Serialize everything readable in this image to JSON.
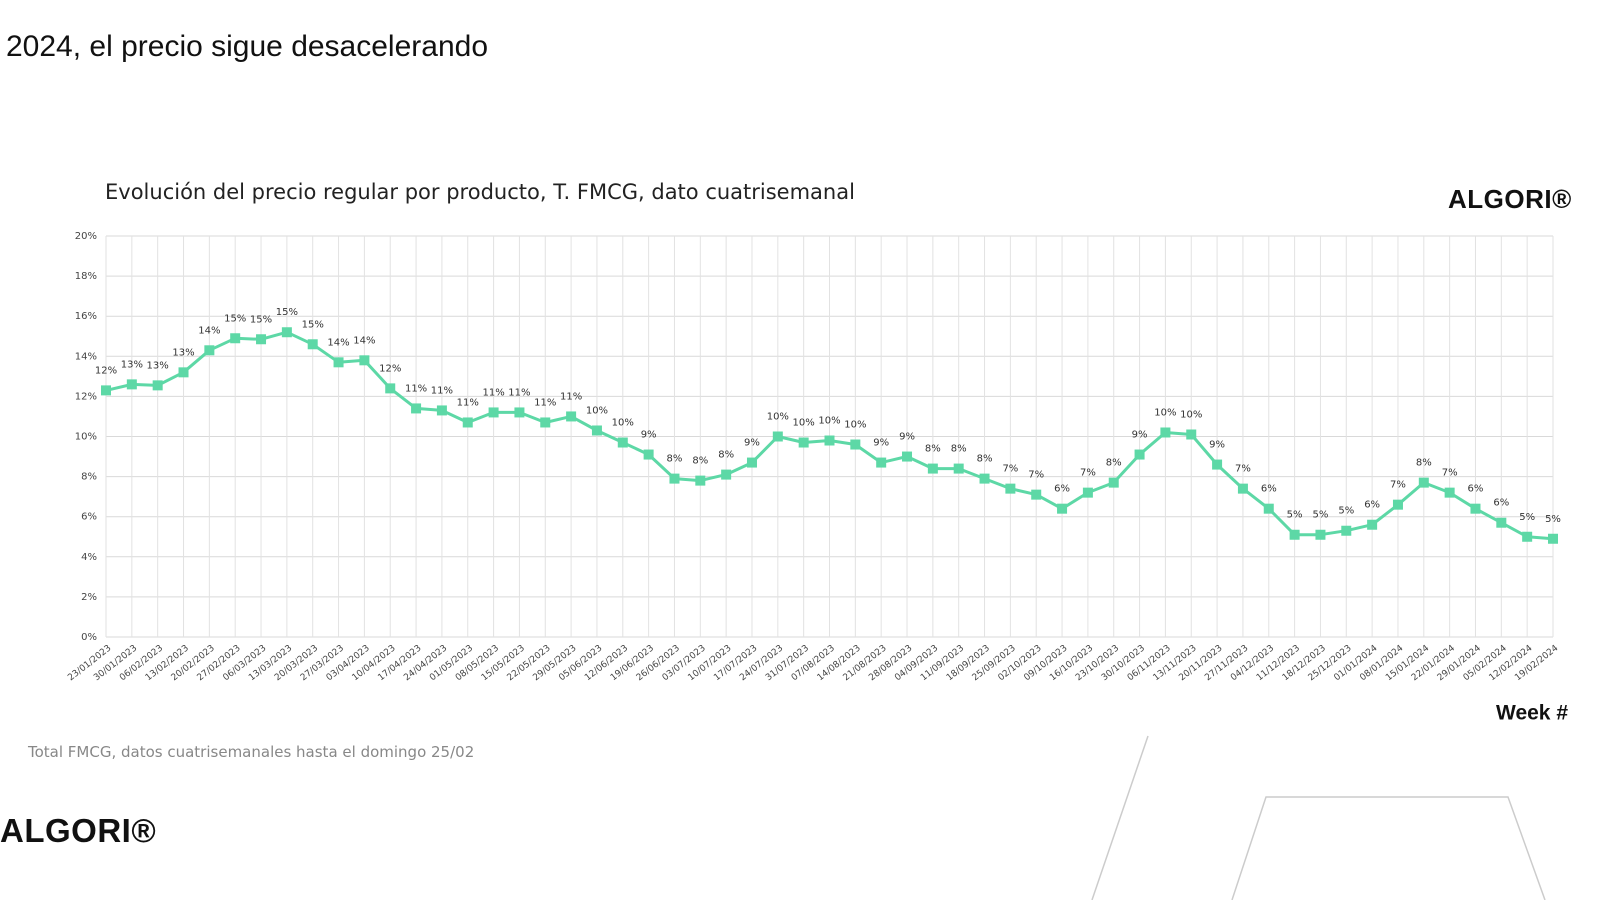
{
  "slide": {
    "title": "2024, el precio sigue desacelerando",
    "logo": "ALGORI®",
    "note": "Total FMCG, datos cuatrisemanales hasta el domingo 25/02"
  },
  "chart_data": {
    "type": "line",
    "title": "Evolución del precio regular por producto, T. FMCG, dato cuatrisemanal",
    "x_label": "Week #",
    "categories": [
      "23/01/2023",
      "30/01/2023",
      "06/02/2023",
      "13/02/2023",
      "20/02/2023",
      "27/02/2023",
      "06/03/2023",
      "13/03/2023",
      "20/03/2023",
      "27/03/2023",
      "03/04/2023",
      "10/04/2023",
      "17/04/2023",
      "24/04/2023",
      "01/05/2023",
      "08/05/2023",
      "15/05/2023",
      "22/05/2023",
      "29/05/2023",
      "05/06/2023",
      "12/06/2023",
      "19/06/2023",
      "26/06/2023",
      "03/07/2023",
      "10/07/2023",
      "17/07/2023",
      "24/07/2023",
      "31/07/2023",
      "07/08/2023",
      "14/08/2023",
      "21/08/2023",
      "28/08/2023",
      "04/09/2023",
      "11/09/2023",
      "18/09/2023",
      "25/09/2023",
      "02/10/2023",
      "09/10/2023",
      "16/10/2023",
      "23/10/2023",
      "30/10/2023",
      "06/11/2023",
      "13/11/2023",
      "20/11/2023",
      "27/11/2023",
      "04/12/2023",
      "11/12/2023",
      "18/12/2023",
      "25/12/2023",
      "01/01/2024",
      "08/01/2024",
      "15/01/2024",
      "22/01/2024",
      "29/01/2024",
      "05/02/2024",
      "12/02/2024",
      "19/02/2024"
    ],
    "values": [
      12.3,
      12.6,
      12.55,
      13.2,
      14.3,
      14.9,
      14.85,
      15.2,
      14.6,
      13.7,
      13.8,
      12.4,
      11.4,
      11.3,
      10.7,
      11.2,
      11.2,
      10.7,
      11.0,
      10.3,
      9.7,
      9.1,
      7.9,
      7.8,
      8.1,
      8.7,
      10.0,
      9.7,
      9.8,
      9.6,
      8.7,
      9.0,
      8.4,
      8.4,
      7.9,
      7.4,
      7.1,
      6.4,
      7.2,
      7.7,
      9.1,
      10.2,
      10.1,
      8.6,
      7.4,
      6.4,
      5.1,
      5.1,
      5.3,
      5.6,
      6.6,
      7.7,
      7.2,
      6.4,
      5.7,
      5.0,
      4.9
    ],
    "value_labels": [
      "12%",
      "13%",
      "13%",
      "13%",
      "14%",
      "15%",
      "15%",
      "15%",
      "15%",
      "14%",
      "14%",
      "12%",
      "11%",
      "11%",
      "11%",
      "11%",
      "11%",
      "11%",
      "11%",
      "10%",
      "10%",
      "9%",
      "8%",
      "8%",
      "8%",
      "9%",
      "10%",
      "10%",
      "10%",
      "10%",
      "9%",
      "9%",
      "8%",
      "8%",
      "8%",
      "7%",
      "7%",
      "6%",
      "7%",
      "8%",
      "9%",
      "10%",
      "10%",
      "9%",
      "7%",
      "6%",
      "5%",
      "5%",
      "5%",
      "6%",
      "7%",
      "8%",
      "7%",
      "6%",
      "6%",
      "5%",
      "5%"
    ],
    "color": "#5dd8a6",
    "ylim": [
      0,
      20
    ],
    "yticks": [
      {
        "value": 0,
        "label": "0%"
      },
      {
        "value": 2,
        "label": "2%"
      },
      {
        "value": 4,
        "label": "4%"
      },
      {
        "value": 6,
        "label": "6%"
      },
      {
        "value": 8,
        "label": "8%"
      },
      {
        "value": 10,
        "label": "10%"
      },
      {
        "value": 12,
        "label": "12%"
      },
      {
        "value": 14,
        "label": "14%"
      },
      {
        "value": 16,
        "label": "16%"
      },
      {
        "value": 18,
        "label": "18%"
      },
      {
        "value": 20,
        "label": "20%"
      }
    ],
    "grid": true
  }
}
